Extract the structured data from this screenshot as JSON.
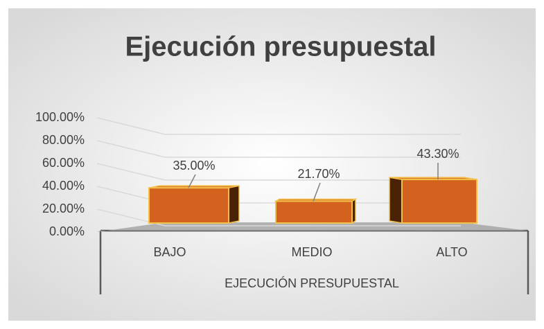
{
  "chart_data": {
    "type": "bar3d",
    "title": "Ejecución presupuestal",
    "categories": [
      "BAJO",
      "MEDIO",
      "ALTO"
    ],
    "values": [
      35,
      21.7,
      43.3
    ],
    "value_labels": [
      "35.00%",
      "21.70%",
      "43.30%"
    ],
    "color": "#d2621e",
    "xlabel": "EJECUCIÓN PRESUPUESTAL",
    "ylim": [
      0,
      100
    ],
    "yticks": [
      {
        "value": 0,
        "label": "0.00%"
      },
      {
        "value": 20,
        "label": "20.00%"
      },
      {
        "value": 40,
        "label": "40.00%"
      },
      {
        "value": 60,
        "label": "60.00%"
      },
      {
        "value": 80,
        "label": "80.00%"
      },
      {
        "value": 100,
        "label": "100.00%"
      }
    ],
    "grid": true
  }
}
